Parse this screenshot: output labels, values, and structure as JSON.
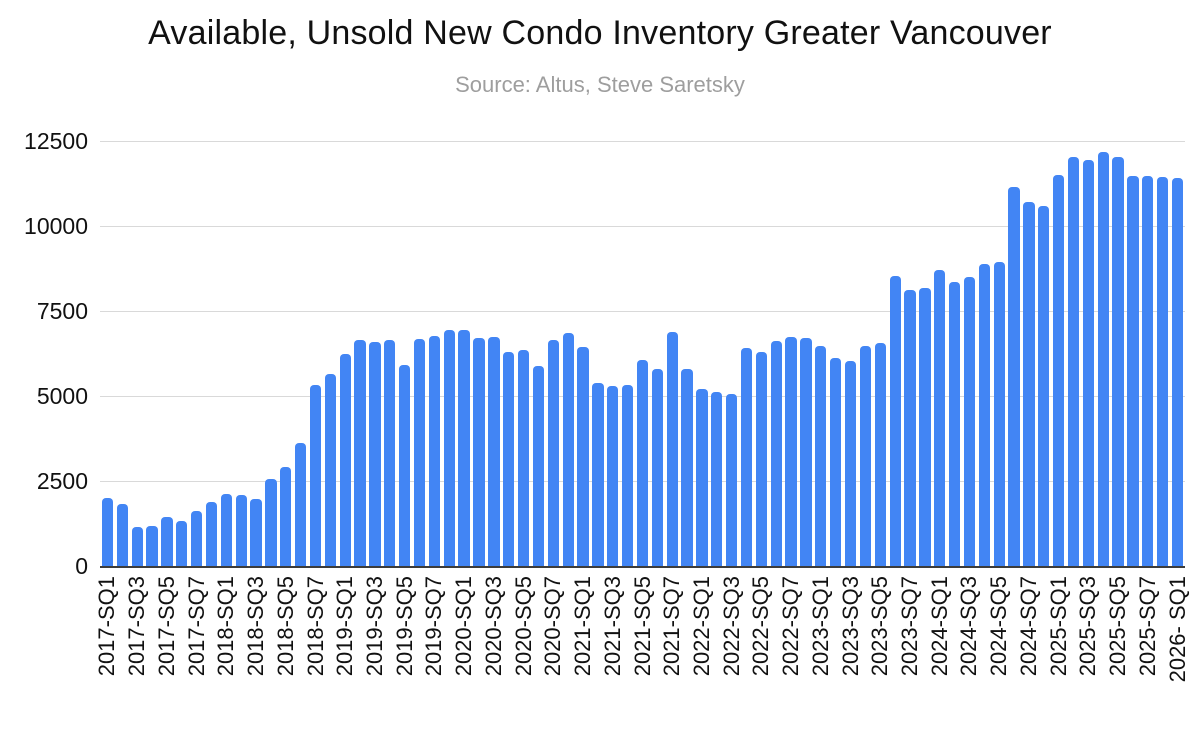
{
  "title": "Available, Unsold New Condo Inventory Greater Vancouver",
  "subtitle": "Source: Altus, Steve Saretsky",
  "chart_data": {
    "type": "bar",
    "title": "Available, Unsold New Condo Inventory Greater Vancouver",
    "subtitle": "Source: Altus, Steve Saretsky",
    "xlabel": "",
    "ylabel": "",
    "ylim": [
      0,
      12500
    ],
    "yticks": [
      0,
      2500,
      5000,
      7500,
      10000,
      12500
    ],
    "grid": true,
    "legend": false,
    "bar_color": "#4285f4",
    "categories": [
      "2017-SQ1",
      "2017-SQ2",
      "2017-SQ3",
      "2017-SQ4",
      "2017-SQ5",
      "2017-SQ6",
      "2017-SQ7",
      "2017-SQ8",
      "2018-SQ1",
      "2018-SQ2",
      "2018-SQ3",
      "2018-SQ4",
      "2018-SQ5",
      "2018-SQ6",
      "2018-SQ7",
      "2018-SQ8",
      "2019-SQ1",
      "2019-SQ2",
      "2019-SQ3",
      "2019-SQ4",
      "2019-SQ5",
      "2019-SQ6",
      "2019-SQ7",
      "2019-SQ8",
      "2020-SQ1",
      "2020-SQ2",
      "2020-SQ3",
      "2020-SQ4",
      "2020-SQ5",
      "2020-SQ6",
      "2020-SQ7",
      "2020-SQ8",
      "2021-SQ1",
      "2021-SQ2",
      "2021-SQ3",
      "2021-SQ4",
      "2021-SQ5",
      "2021-SQ6",
      "2021-SQ7",
      "2021-SQ8",
      "2022-SQ1",
      "2022-SQ2",
      "2022-SQ3",
      "2022-SQ4",
      "2022-SQ5",
      "2022-SQ6",
      "2022-SQ7",
      "2022-SQ8",
      "2023-SQ1",
      "2023-SQ2",
      "2023-SQ3",
      "2023-SQ4",
      "2023-SQ5",
      "2023-SQ6",
      "2023-SQ7",
      "2023-SQ8",
      "2024-SQ1",
      "2024-SQ2",
      "2024-SQ3",
      "2024-SQ4",
      "2024-SQ5",
      "2024-SQ6",
      "2024-SQ7",
      "2024-SQ8",
      "2025-SQ1",
      "2025-SQ2",
      "2025-SQ3",
      "2025-SQ4",
      "2025-SQ5",
      "2025-SQ6",
      "2025-SQ7",
      "2025-SQ8",
      "2026-SQ1"
    ],
    "values": [
      2000,
      1820,
      1150,
      1190,
      1430,
      1330,
      1620,
      1890,
      2110,
      2090,
      1960,
      2550,
      2920,
      3630,
      5320,
      5660,
      6250,
      6660,
      6580,
      6640,
      5920,
      6680,
      6760,
      6930,
      6930,
      6710,
      6730,
      6290,
      6340,
      5880,
      6660,
      6860,
      6440,
      5380,
      5290,
      5330,
      6050,
      5800,
      6870,
      5800,
      5210,
      5110,
      5070,
      6420,
      6290,
      6610,
      6740,
      6700,
      6470,
      6120,
      6040,
      6470,
      6550,
      8530,
      8110,
      8180,
      8710,
      8340,
      8500,
      8880,
      8930,
      11140,
      10700,
      10600,
      11490,
      12030,
      11930,
      12190,
      12030,
      11460,
      11480,
      11440,
      11410
    ],
    "x_tick_interval": 2,
    "x_labels_shown": [
      "2017-SQ1",
      "2017-SQ3",
      "2017-SQ5",
      "2017-SQ7",
      "2018-SQ1",
      "2018-SQ3",
      "2018-SQ5",
      "2018-SQ7",
      "2019-SQ1",
      "2019-SQ3",
      "2019-SQ5",
      "2019-SQ7",
      "2020-SQ1",
      "2020-SQ3",
      "2020-SQ5",
      "2020-SQ7",
      "2021-SQ1",
      "2021-SQ3",
      "2021-SQ5",
      "2021-SQ7",
      "2022-SQ1",
      "2022-SQ3",
      "2022-SQ5",
      "2022-SQ7",
      "2023-SQ1",
      "2023-SQ3",
      "2023-SQ5",
      "2023-SQ7",
      "2024-SQ1",
      "2024-SQ3",
      "2024-SQ5",
      "2024-SQ7",
      "2025-SQ1",
      "2025-SQ3",
      "2025-SQ5",
      "2025-SQ7",
      "2026- SQ1"
    ],
    "x_label_rotation_degrees": 90
  }
}
